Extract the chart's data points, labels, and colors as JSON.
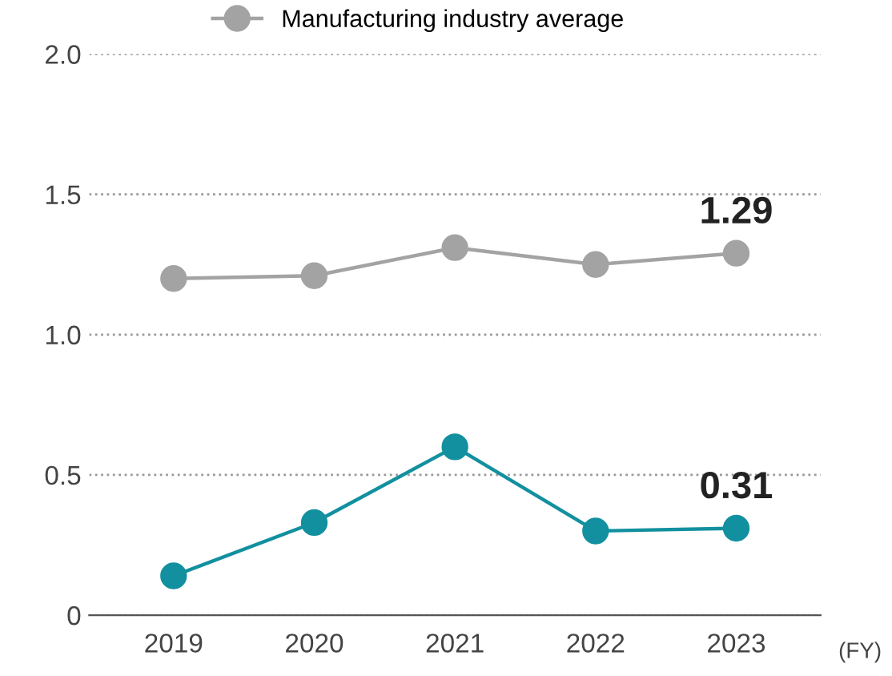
{
  "chart_data": {
    "type": "line",
    "xlabel": "(FY)",
    "categories": [
      "2019",
      "2020",
      "2021",
      "2022",
      "2023"
    ],
    "series": [
      {
        "color": "#12909f",
        "values": [
          0.14,
          0.33,
          0.6,
          0.3,
          0.31
        ],
        "value_labels": [
          null,
          null,
          null,
          null,
          "0.31"
        ]
      },
      {
        "name": "Manufacturing industry average",
        "color": "#a3a3a3",
        "values": [
          1.2,
          1.21,
          1.31,
          1.25,
          1.29
        ],
        "value_labels": [
          null,
          null,
          null,
          null,
          "1.29"
        ]
      }
    ],
    "ylim": [
      0,
      2.0
    ],
    "yticks": [
      {
        "value": 0,
        "label": "0"
      },
      0.5,
      {
        "value": 1.0,
        "label": "1.0"
      },
      1.5,
      {
        "value": 2.0,
        "label": "2.0"
      }
    ],
    "grid": "y",
    "legend": "top",
    "marker": "circle",
    "line_style": "solid"
  }
}
